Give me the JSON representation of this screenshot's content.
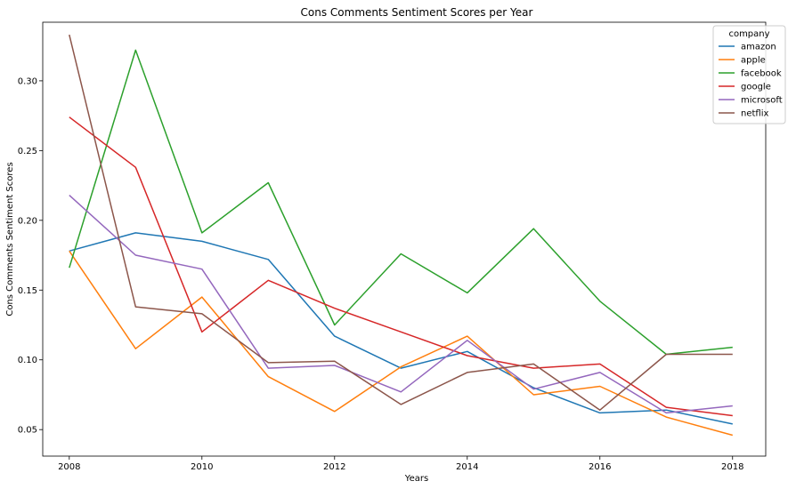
{
  "chart_data": {
    "type": "line",
    "title": "Cons Comments Sentiment Scores per Year",
    "xlabel": "Years",
    "ylabel": "Cons Comments Sentiment Scores",
    "x": [
      2008,
      2009,
      2010,
      2011,
      2012,
      2013,
      2014,
      2015,
      2016,
      2017,
      2018
    ],
    "xlim": [
      2007.6,
      2018.5
    ],
    "ylim": [
      0.031,
      0.342
    ],
    "xticks": [
      2008,
      2010,
      2012,
      2014,
      2016,
      2018
    ],
    "xtick_labels": [
      "2008",
      "2010",
      "2012",
      "2014",
      "2016",
      "2018"
    ],
    "yticks": [
      0.05,
      0.1,
      0.15,
      0.2,
      0.25,
      0.3
    ],
    "ytick_labels": [
      "0.05",
      "0.10",
      "0.15",
      "0.20",
      "0.25",
      "0.30"
    ],
    "legend_title": "company",
    "legend_position": "top-right",
    "series": [
      {
        "name": "amazon",
        "color": "#1f77b4",
        "values": [
          0.178,
          0.191,
          0.185,
          0.172,
          0.117,
          0.094,
          0.106,
          0.08,
          0.062,
          0.064,
          0.054
        ]
      },
      {
        "name": "apple",
        "color": "#ff7f0e",
        "values": [
          0.178,
          0.108,
          0.145,
          0.088,
          0.063,
          0.095,
          0.117,
          0.075,
          0.081,
          0.059,
          0.046
        ]
      },
      {
        "name": "facebook",
        "color": "#2ca02c",
        "values": [
          0.166,
          0.322,
          0.191,
          0.227,
          0.125,
          0.176,
          0.148,
          0.194,
          0.142,
          0.104,
          0.109
        ]
      },
      {
        "name": "google",
        "color": "#d62728",
        "values": [
          0.274,
          0.238,
          0.12,
          0.157,
          0.137,
          0.12,
          0.103,
          0.094,
          0.097,
          0.066,
          0.06
        ]
      },
      {
        "name": "microsoft",
        "color": "#9467bd",
        "values": [
          0.218,
          0.175,
          0.165,
          0.094,
          0.096,
          0.077,
          0.114,
          0.079,
          0.091,
          0.062,
          0.067
        ]
      },
      {
        "name": "netflix",
        "color": "#8c564b",
        "values": [
          0.333,
          0.138,
          0.133,
          0.098,
          0.099,
          0.068,
          0.091,
          0.097,
          0.064,
          0.104,
          0.104
        ]
      }
    ]
  }
}
